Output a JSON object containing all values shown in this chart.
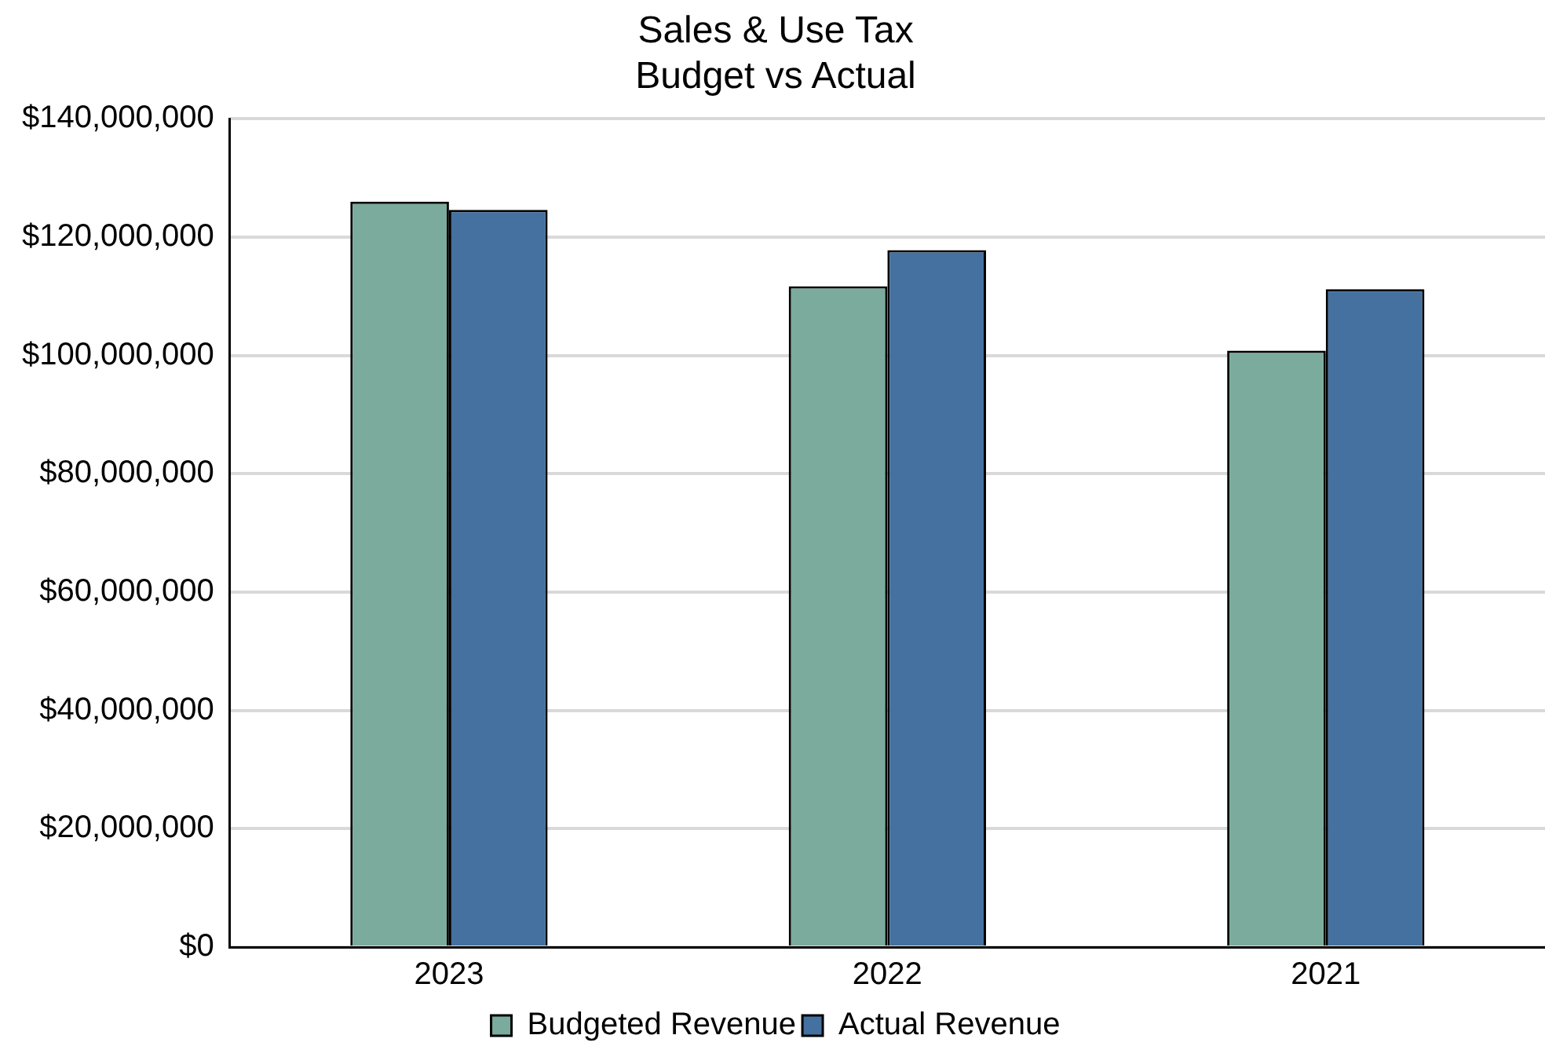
{
  "chart_data": {
    "type": "bar",
    "title": [
      "Sales & Use Tax",
      "Budget vs Actual"
    ],
    "categories": [
      "2023",
      "2022",
      "2021"
    ],
    "series": [
      {
        "name": "Budgeted Revenue",
        "color": "#7aab9d",
        "values": [
          126000000,
          111700000,
          100800000
        ]
      },
      {
        "name": "Actual Revenue",
        "color": "#44719f",
        "values": [
          124600000,
          117800000,
          111200000
        ]
      }
    ],
    "ylim": [
      0,
      140000000
    ],
    "yticks": [
      {
        "value": 0,
        "label": "$0"
      },
      {
        "value": 20000000,
        "label": "$20,000,000"
      },
      {
        "value": 40000000,
        "label": "$40,000,000"
      },
      {
        "value": 60000000,
        "label": "$60,000,000"
      },
      {
        "value": 80000000,
        "label": "$80,000,000"
      },
      {
        "value": 100000000,
        "label": "$100,000,000"
      },
      {
        "value": 120000000,
        "label": "$120,000,000"
      },
      {
        "value": 140000000,
        "label": "$140,000,000"
      }
    ],
    "grid": "y",
    "legend": "bottom"
  }
}
